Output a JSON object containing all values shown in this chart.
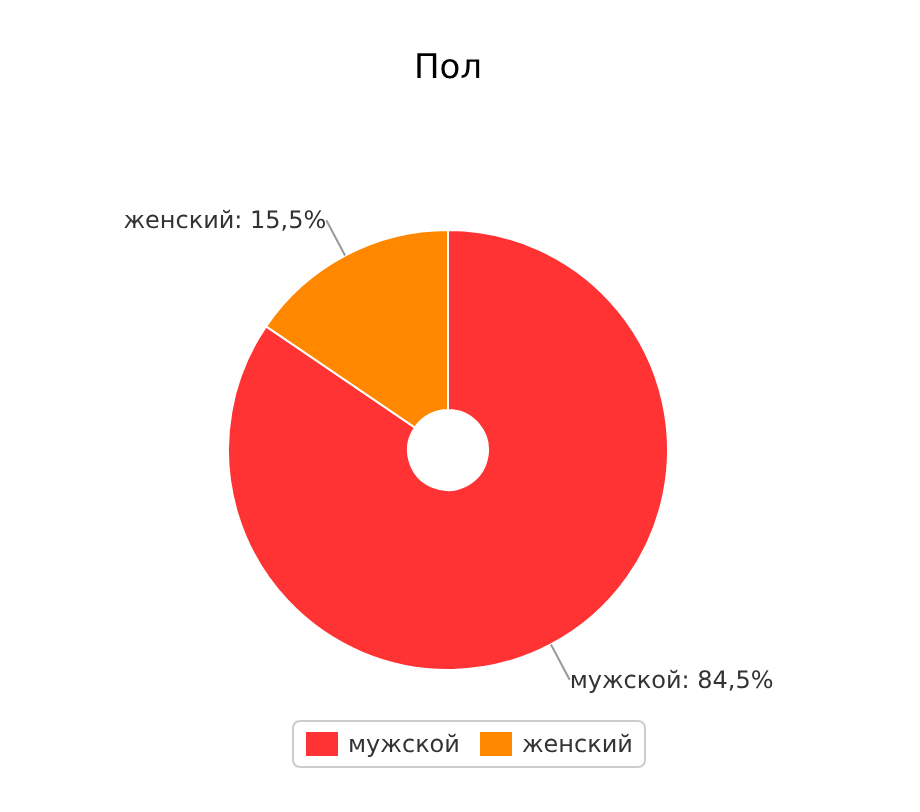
{
  "chart_data": {
    "type": "donut",
    "title": "Пол",
    "categories": [
      "мужской",
      "женский"
    ],
    "values": [
      84.5,
      15.5
    ],
    "colors": [
      "#ff3333",
      "#ff8800"
    ],
    "value_labels": [
      "мужской: 84,5%",
      "женский: 15,5%"
    ],
    "legend": "bottom"
  }
}
